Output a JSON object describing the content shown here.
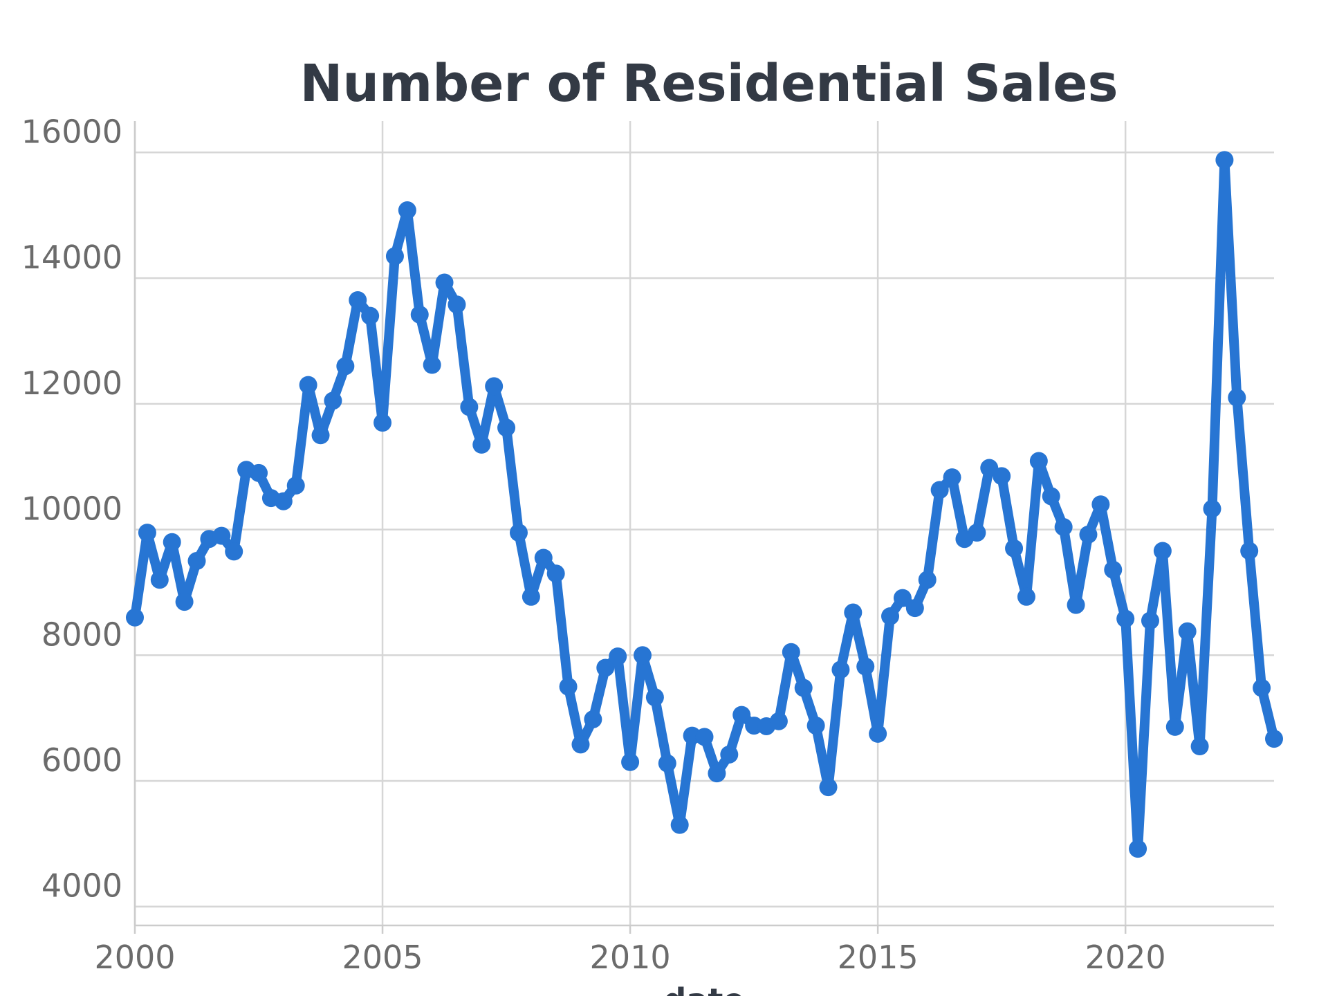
{
  "chart_data": {
    "type": "line",
    "title": "Number of Residential Sales",
    "xlabel": "date",
    "ylabel": "",
    "xlim": [
      2000,
      2023
    ],
    "ylim": [
      3700,
      16500
    ],
    "x_ticks": [
      2000,
      2005,
      2010,
      2015,
      2020
    ],
    "y_ticks": [
      4000,
      6000,
      8000,
      10000,
      12000,
      14000,
      16000
    ],
    "grid": true,
    "color": "#2775d3",
    "series": [
      {
        "name": "Number of Residential Sales",
        "x": [
          2000.0,
          2000.25,
          2000.5,
          2000.75,
          2001.0,
          2001.25,
          2001.5,
          2001.75,
          2002.0,
          2002.25,
          2002.5,
          2002.75,
          2003.0,
          2003.25,
          2003.5,
          2003.75,
          2004.0,
          2004.25,
          2004.5,
          2004.75,
          2005.0,
          2005.25,
          2005.5,
          2005.75,
          2006.0,
          2006.25,
          2006.5,
          2006.75,
          2007.0,
          2007.25,
          2007.5,
          2007.75,
          2008.0,
          2008.25,
          2008.5,
          2008.75,
          2009.0,
          2009.25,
          2009.5,
          2009.75,
          2010.0,
          2010.25,
          2010.5,
          2010.75,
          2011.0,
          2011.25,
          2011.5,
          2011.75,
          2012.0,
          2012.25,
          2012.5,
          2012.75,
          2013.0,
          2013.25,
          2013.5,
          2013.75,
          2014.0,
          2014.25,
          2014.5,
          2014.75,
          2015.0,
          2015.25,
          2015.5,
          2015.75,
          2016.0,
          2016.25,
          2016.5,
          2016.75,
          2017.0,
          2017.25,
          2017.5,
          2017.75,
          2018.0,
          2018.25,
          2018.5,
          2018.75,
          2019.0,
          2019.25,
          2019.5,
          2019.75,
          2020.0,
          2020.25,
          2020.5,
          2020.75,
          2021.0,
          2021.25,
          2021.5,
          2021.75,
          2022.0,
          2022.25,
          2022.5,
          2022.75,
          2023.0
        ],
        "y": [
          8600,
          9950,
          9200,
          9800,
          8850,
          9500,
          9850,
          9900,
          9650,
          10950,
          10900,
          10500,
          10450,
          10700,
          12300,
          11500,
          12050,
          12600,
          13650,
          13400,
          11700,
          14350,
          15080,
          13420,
          12620,
          13930,
          13580,
          11950,
          11350,
          12280,
          11620,
          9950,
          8930,
          9550,
          9300,
          7500,
          6580,
          6980,
          7800,
          7980,
          6300,
          8000,
          7330,
          6280,
          5300,
          6720,
          6700,
          6120,
          6420,
          7050,
          6880,
          6870,
          6950,
          8050,
          7480,
          6880,
          5900,
          7770,
          8680,
          7820,
          6750,
          8620,
          8910,
          8750,
          9200,
          10630,
          10830,
          9850,
          9950,
          10980,
          10850,
          9700,
          8930,
          11090,
          10530,
          10040,
          8800,
          9920,
          10400,
          9360,
          8580,
          4920,
          8550,
          9660,
          6860,
          8380,
          6550,
          10330,
          15880,
          12100,
          9660,
          7480,
          6670
        ]
      }
    ]
  }
}
